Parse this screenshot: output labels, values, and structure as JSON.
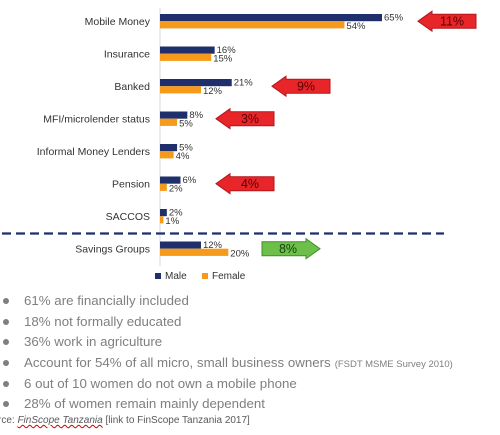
{
  "chart_data": {
    "type": "bar",
    "orientation": "horizontal",
    "categories": [
      "Mobile Money",
      "Insurance",
      "Banked",
      "MFI/microlender status",
      "Informal Money Lenders",
      "Pension",
      "SACCOS",
      "Savings Groups"
    ],
    "series": [
      {
        "name": "Male",
        "color": "#1f2f6b",
        "values": [
          65,
          16,
          21,
          8,
          5,
          6,
          2,
          12
        ]
      },
      {
        "name": "Female",
        "color": "#f59a1b",
        "values": [
          54,
          15,
          12,
          5,
          4,
          2,
          1,
          20
        ]
      }
    ],
    "value_labels": {
      "male": [
        "65%",
        "16%",
        "21%",
        "8%",
        "5%",
        "6%",
        "2%",
        "12%"
      ],
      "female": [
        "54%",
        "15%",
        "12%",
        "5%",
        "4%",
        "2%",
        "1%",
        "20%"
      ]
    },
    "gaps": [
      {
        "category": "Mobile Money",
        "label": "11%",
        "direction": "left",
        "color": "#e8262a"
      },
      {
        "category": "Banked",
        "label": "9%",
        "direction": "left",
        "color": "#e8262a"
      },
      {
        "category": "MFI/microlender status",
        "label": "3%",
        "direction": "left",
        "color": "#e8262a"
      },
      {
        "category": "Pension",
        "label": "4%",
        "direction": "left",
        "color": "#e8262a"
      },
      {
        "category": "Savings Groups",
        "label": "8%",
        "direction": "right",
        "color": "#6cc04a"
      }
    ],
    "xlim": [
      0,
      65
    ],
    "legend": {
      "position": "bottom",
      "items": [
        "Male",
        "Female"
      ]
    },
    "grid": false,
    "separator": "dashed line between SACCOS and Savings Groups"
  },
  "bullets": [
    {
      "text": "61% are financially included"
    },
    {
      "text": "18% not formally educated"
    },
    {
      "text": "36% work in agriculture"
    },
    {
      "text": "Account for 54% of all micro, small business owners",
      "note": "(FSDT MSME Survey 2010)"
    },
    {
      "text": "6 out of 10 women do not own a mobile phone"
    },
    {
      "text": "28% of women remain mainly dependent"
    }
  ],
  "source": {
    "prefix": "rce: ",
    "name": "FinScope Tanzania",
    "suffix": " [link to FinScope Tanzania 2017]"
  }
}
